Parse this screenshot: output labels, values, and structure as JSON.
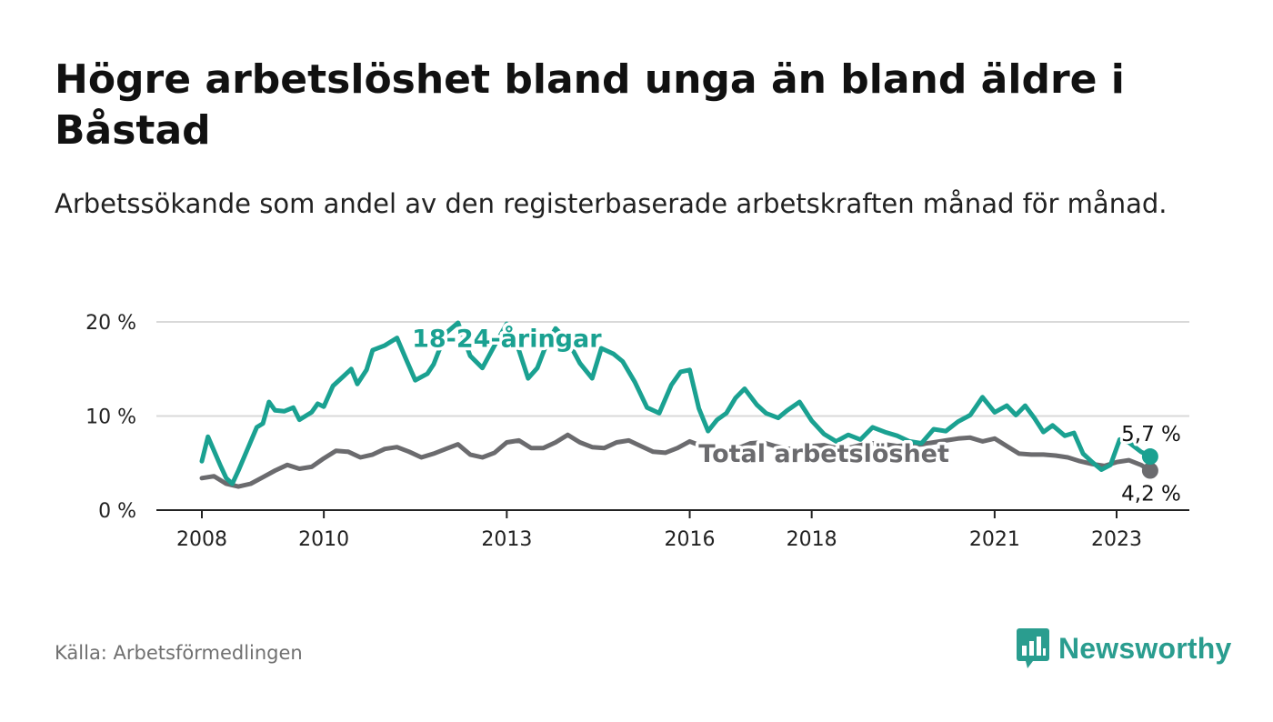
{
  "title": "Högre arbetslöshet bland unga än bland äldre i Båstad",
  "subtitle": "Arbetssökande som andel av den registerbaserade arbetskraften månad för månad.",
  "source": "Källa: Arbetsförmedlingen",
  "logo": {
    "name": "Newsworthy",
    "icon": "bar-chart-logo-icon"
  },
  "colors": {
    "youth": "#1aa191",
    "total": "#6b6b6e",
    "grid": "#d9d9d9",
    "axis": "#222222",
    "logo": "#2a9d8f"
  },
  "chart_data": {
    "type": "line",
    "title": "Högre arbetslöshet bland unga än bland äldre i Båstad",
    "xlabel": "",
    "ylabel": "",
    "ylim": [
      0,
      20
    ],
    "y_ticks": [
      {
        "value": 0,
        "label": "0 %"
      },
      {
        "value": 10,
        "label": "10 %"
      },
      {
        "value": 20,
        "label": "20 %"
      }
    ],
    "x_ticks": [
      {
        "value": 2008,
        "label": "2008"
      },
      {
        "value": 2010,
        "label": "2010"
      },
      {
        "value": 2013,
        "label": "2013"
      },
      {
        "value": 2016,
        "label": "2016"
      },
      {
        "value": 2018,
        "label": "2018"
      },
      {
        "value": 2021,
        "label": "2021"
      },
      {
        "value": 2023,
        "label": "2023"
      }
    ],
    "xlim": [
      2007.25,
      2024.2
    ],
    "grid": true,
    "series": [
      {
        "name": "18-24-åringar",
        "color": "#1aa191",
        "x": [
          2008.0,
          2008.1,
          2008.3,
          2008.4,
          2008.5,
          2008.6,
          2008.75,
          2008.9,
          2009.0,
          2009.1,
          2009.2,
          2009.35,
          2009.5,
          2009.6,
          2009.8,
          2009.9,
          2010.0,
          2010.15,
          2010.3,
          2010.45,
          2010.55,
          2010.7,
          2010.8,
          2011.0,
          2011.2,
          2011.35,
          2011.5,
          2011.7,
          2011.8,
          2012.0,
          2012.2,
          2012.4,
          2012.6,
          2012.8,
          2013.0,
          2013.2,
          2013.35,
          2013.5,
          2013.65,
          2013.8,
          2014.0,
          2014.2,
          2014.4,
          2014.55,
          2014.75,
          2014.9,
          2015.1,
          2015.3,
          2015.5,
          2015.7,
          2015.85,
          2016.0,
          2016.15,
          2016.3,
          2016.45,
          2016.6,
          2016.75,
          2016.9,
          2017.1,
          2017.25,
          2017.45,
          2017.6,
          2017.8,
          2018.0,
          2018.2,
          2018.4,
          2018.6,
          2018.8,
          2019.0,
          2019.2,
          2019.4,
          2019.6,
          2019.8,
          2020.0,
          2020.2,
          2020.4,
          2020.6,
          2020.8,
          2020.9,
          2021.0,
          2021.2,
          2021.35,
          2021.5,
          2021.65,
          2021.8,
          2021.95,
          2022.15,
          2022.3,
          2022.45,
          2022.6,
          2022.75,
          2022.9,
          2023.05,
          2023.2,
          2023.4,
          2023.55
        ],
        "values": [
          5.2,
          7.8,
          4.8,
          3.4,
          2.8,
          4.2,
          6.5,
          8.8,
          9.2,
          11.5,
          10.6,
          10.5,
          10.9,
          9.6,
          10.4,
          11.3,
          11.0,
          13.2,
          14.1,
          15.0,
          13.4,
          14.9,
          17.0,
          17.5,
          18.3,
          16.0,
          13.8,
          14.5,
          15.5,
          18.8,
          19.9,
          16.4,
          15.1,
          17.5,
          19.8,
          17.0,
          14.0,
          15.1,
          17.6,
          19.3,
          18.0,
          15.6,
          14.0,
          17.2,
          16.6,
          15.8,
          13.6,
          10.9,
          10.3,
          13.3,
          14.7,
          14.9,
          10.8,
          8.4,
          9.6,
          10.3,
          11.9,
          12.9,
          11.2,
          10.3,
          9.8,
          10.6,
          11.5,
          9.5,
          8.1,
          7.3,
          8.0,
          7.5,
          8.8,
          8.3,
          7.9,
          7.3,
          7.1,
          8.6,
          8.4,
          9.4,
          10.1,
          12.0,
          11.2,
          10.4,
          11.1,
          10.1,
          11.1,
          9.8,
          8.3,
          9.0,
          7.9,
          8.2,
          6.0,
          5.1,
          4.3,
          4.8,
          7.5,
          7.2,
          6.2,
          5.7
        ]
      },
      {
        "name": "Total arbetslöshet",
        "color": "#6b6b6e",
        "x": [
          2008.0,
          2008.2,
          2008.4,
          2008.6,
          2008.8,
          2009.0,
          2009.2,
          2009.4,
          2009.6,
          2009.8,
          2010.0,
          2010.2,
          2010.4,
          2010.6,
          2010.8,
          2011.0,
          2011.2,
          2011.4,
          2011.6,
          2011.8,
          2012.0,
          2012.2,
          2012.4,
          2012.6,
          2012.8,
          2013.0,
          2013.2,
          2013.4,
          2013.6,
          2013.8,
          2014.0,
          2014.2,
          2014.4,
          2014.6,
          2014.8,
          2015.0,
          2015.2,
          2015.4,
          2015.6,
          2015.8,
          2016.0,
          2016.2,
          2016.4,
          2016.6,
          2016.8,
          2017.0,
          2017.2,
          2017.4,
          2017.6,
          2017.8,
          2018.0,
          2018.2,
          2018.4,
          2018.6,
          2018.8,
          2019.0,
          2019.2,
          2019.4,
          2019.6,
          2019.8,
          2020.0,
          2020.2,
          2020.4,
          2020.6,
          2020.8,
          2021.0,
          2021.2,
          2021.4,
          2021.6,
          2021.8,
          2022.0,
          2022.2,
          2022.4,
          2022.6,
          2022.8,
          2023.0,
          2023.2,
          2023.4,
          2023.55
        ],
        "values": [
          3.4,
          3.6,
          2.8,
          2.5,
          2.8,
          3.5,
          4.2,
          4.8,
          4.4,
          4.6,
          5.5,
          6.3,
          6.2,
          5.6,
          5.9,
          6.5,
          6.7,
          6.2,
          5.6,
          6.0,
          6.5,
          7.0,
          5.9,
          5.6,
          6.1,
          7.2,
          7.4,
          6.6,
          6.6,
          7.2,
          8.0,
          7.2,
          6.7,
          6.6,
          7.2,
          7.4,
          6.8,
          6.2,
          6.1,
          6.6,
          7.3,
          6.8,
          6.1,
          6.3,
          6.6,
          7.1,
          7.2,
          6.8,
          6.5,
          6.6,
          6.8,
          6.9,
          6.6,
          6.6,
          6.9,
          7.1,
          7.0,
          6.8,
          6.9,
          7.0,
          7.2,
          7.4,
          7.6,
          7.7,
          7.3,
          7.6,
          6.8,
          6.0,
          5.9,
          5.9,
          5.8,
          5.6,
          5.2,
          4.9,
          4.7,
          5.1,
          5.3,
          4.8,
          4.2
        ]
      }
    ],
    "annotations": [
      {
        "text": "18-24-åringar",
        "series": "18-24-åringar",
        "x": 2013.0,
        "y": 18.3
      },
      {
        "text": "Total arbetslöshet",
        "series": "Total arbetslöshet",
        "x": 2018.2,
        "y": 6.1
      }
    ],
    "end_labels": [
      {
        "series": "18-24-åringar",
        "text": "5,7 %",
        "value": 5.7
      },
      {
        "series": "Total arbetslöshet",
        "text": "4,2 %",
        "value": 4.2
      }
    ]
  }
}
